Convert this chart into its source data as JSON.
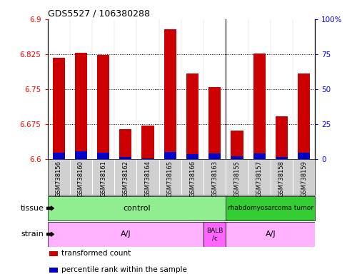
{
  "title": "GDS5527 / 106380288",
  "samples": [
    "GSM738156",
    "GSM738160",
    "GSM738161",
    "GSM738162",
    "GSM738164",
    "GSM738165",
    "GSM738166",
    "GSM738163",
    "GSM738155",
    "GSM738157",
    "GSM738158",
    "GSM738159"
  ],
  "red_values": [
    6.817,
    6.828,
    6.823,
    6.664,
    6.671,
    6.878,
    6.783,
    6.754,
    6.661,
    6.826,
    6.692,
    6.784
  ],
  "blue_values": [
    6.613,
    6.616,
    6.614,
    6.604,
    6.601,
    6.615,
    6.611,
    6.612,
    6.605,
    6.612,
    6.604,
    6.613
  ],
  "ymin": 6.6,
  "ymax": 6.9,
  "y_ticks_left": [
    6.6,
    6.675,
    6.75,
    6.825,
    6.9
  ],
  "y_ticks_right": [
    0,
    25,
    50,
    75,
    100
  ],
  "grid_lines": [
    6.675,
    6.75,
    6.825
  ],
  "control_count": 8,
  "tissue_control_label": "control",
  "tissue_tumor_label": "rhabdomyosarcoma tumor",
  "strain_aj1_range": [
    0,
    7
  ],
  "strain_balb_range": [
    7,
    8
  ],
  "strain_aj2_range": [
    8,
    12
  ],
  "strain_aj_label": "A/J",
  "strain_balb_label": "BALB\n/c",
  "tissue_control_color": "#90EE90",
  "tissue_tumor_color": "#33CC33",
  "strain_color": "#FFB3FF",
  "strain_balb_color": "#FF66FF",
  "bar_red": "#CC0000",
  "bar_blue": "#0000CC",
  "legend_red": "transformed count",
  "legend_blue": "percentile rank within the sample",
  "xticklabel_bg": "#D0D0D0"
}
